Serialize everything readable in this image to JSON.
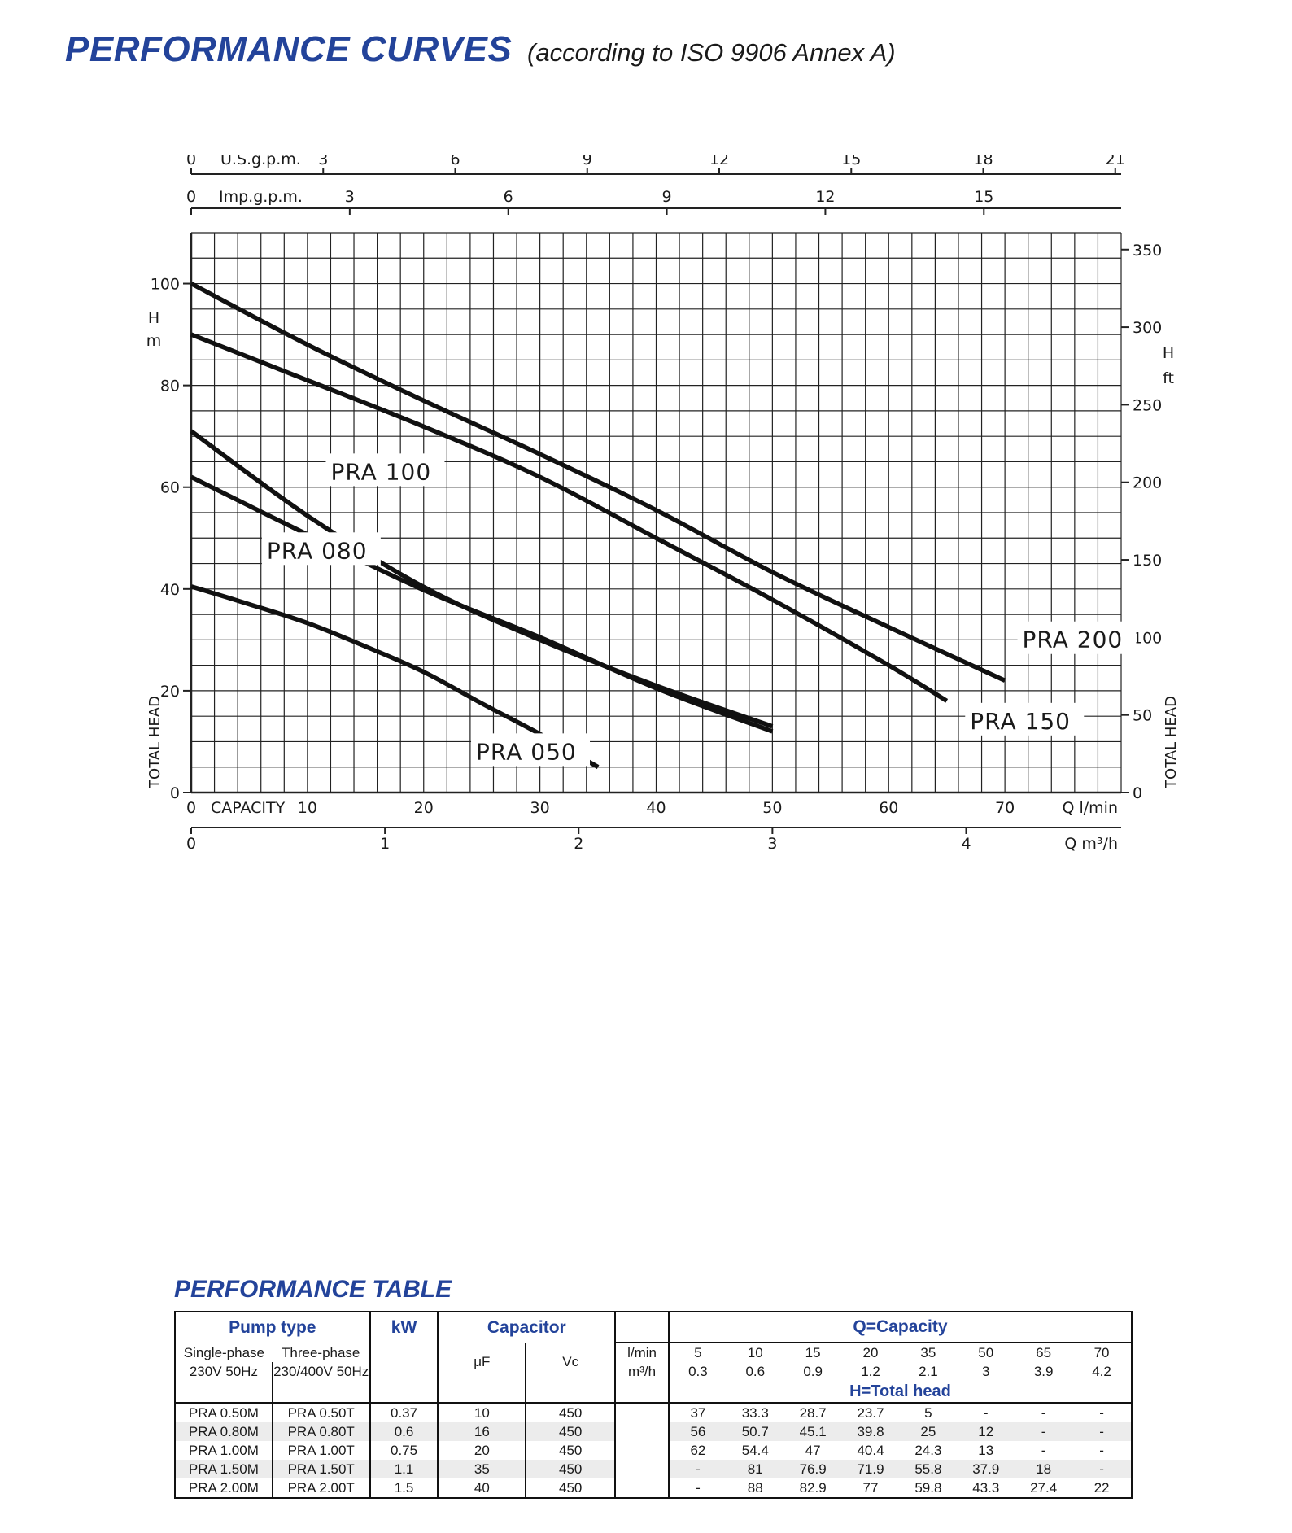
{
  "page": {
    "title": "PERFORMANCE CURVES",
    "subtitle": "(according to ISO 9906 Annex A)",
    "table_title": "PERFORMANCE TABLE"
  },
  "chart_data": {
    "type": "line",
    "x_unit_primary": "Q l/min",
    "x_unit_secondary": "Q m³/h",
    "x_start_label": "CAPACITY",
    "top_unit_us": "U.S.g.p.m.",
    "top_unit_imp": "Imp.g.p.m.",
    "ylabel_left": "TOTAL HEAD",
    "y_unit_left_h": "H",
    "y_unit_left_m": "m",
    "ylabel_right": "TOTAL HEAD",
    "y_unit_right_h": "H",
    "y_unit_right_ft": "ft",
    "xlim": [
      0,
      80
    ],
    "ylim": [
      0,
      110
    ],
    "x_ticks_lmin": [
      "0",
      "10",
      "20",
      "30",
      "40",
      "50",
      "60",
      "70"
    ],
    "x_ticks_m3h": [
      "0",
      "1",
      "2",
      "3",
      "4"
    ],
    "us_gpm_ticks": [
      "0",
      "3",
      "6",
      "9",
      "12",
      "15",
      "18",
      "21"
    ],
    "imp_gpm_ticks": [
      "0",
      "3",
      "6",
      "9",
      "12",
      "15"
    ],
    "y_ticks_m": [
      "0",
      "20",
      "40",
      "60",
      "80",
      "100"
    ],
    "y_ticks_ft": [
      "0",
      "50",
      "100",
      "150",
      "200",
      "250",
      "300",
      "350"
    ],
    "grid": true,
    "series": [
      {
        "name": "PRA 050",
        "x": [
          0,
          5,
          10,
          15,
          20,
          25,
          30,
          35
        ],
        "y": [
          40.5,
          37,
          33.3,
          28.7,
          23.7,
          17.5,
          11.5,
          5
        ]
      },
      {
        "name": "PRA 080",
        "x": [
          0,
          10,
          20,
          30,
          40,
          50
        ],
        "y": [
          62,
          50.7,
          39.8,
          30.5,
          20.5,
          12
        ]
      },
      {
        "name": "PRA 100",
        "x": [
          0,
          10,
          20,
          30,
          40,
          50
        ],
        "y": [
          71,
          54.4,
          40.4,
          30,
          21,
          13
        ]
      },
      {
        "name": "PRA 150",
        "x": [
          0,
          10,
          20,
          30,
          40,
          50,
          60,
          65
        ],
        "y": [
          90,
          81,
          71.9,
          62,
          50,
          37.9,
          25,
          18
        ]
      },
      {
        "name": "PRA 200",
        "x": [
          0,
          10,
          20,
          30,
          40,
          50,
          60,
          70
        ],
        "y": [
          100,
          88,
          77,
          66.5,
          55.5,
          43.3,
          32.5,
          22
        ]
      }
    ],
    "labels": [
      {
        "series": "PRA 100",
        "text": "PRA 100",
        "x": 12,
        "y": 61.5
      },
      {
        "series": "PRA 080",
        "text": "PRA 080",
        "x": 6.5,
        "y": 46
      },
      {
        "series": "PRA 050",
        "text": "PRA 050",
        "x": 24.5,
        "y": 6.5
      },
      {
        "series": "PRA 200",
        "text": "PRA 200",
        "x": 71.5,
        "y": 28.5
      },
      {
        "series": "PRA 150",
        "text": "PRA 150",
        "x": 67,
        "y": 12.5
      }
    ]
  },
  "table": {
    "header": {
      "pump_type": "Pump type",
      "kw": "kW",
      "capacitor": "Capacitor",
      "q_capacity": "Q=Capacity",
      "single_phase": "Single-phase",
      "single_phase_spec": "230V  50Hz",
      "three_phase": "Three-phase",
      "three_phase_spec": "230/400V  50Hz",
      "uf": "μF",
      "vc": "Vc",
      "lmin_label": "l/min",
      "m3h_label": "m³/h",
      "h_total_head": "H=Total head"
    },
    "capacity_lmin": [
      "5",
      "10",
      "15",
      "20",
      "35",
      "50",
      "65",
      "70"
    ],
    "capacity_m3h": [
      "0.3",
      "0.6",
      "0.9",
      "1.2",
      "2.1",
      "3",
      "3.9",
      "4.2"
    ],
    "rows": [
      {
        "single": "PRA 0.50M",
        "three": "PRA 0.50T",
        "kw": "0.37",
        "uf": "10",
        "vc": "450",
        "heads": [
          "37",
          "33.3",
          "28.7",
          "23.7",
          "5",
          "-",
          "-",
          "-"
        ]
      },
      {
        "single": "PRA 0.80M",
        "three": "PRA 0.80T",
        "kw": "0.6",
        "uf": "16",
        "vc": "450",
        "heads": [
          "56",
          "50.7",
          "45.1",
          "39.8",
          "25",
          "12",
          "-",
          "-"
        ]
      },
      {
        "single": "PRA 1.00M",
        "three": "PRA 1.00T",
        "kw": "0.75",
        "uf": "20",
        "vc": "450",
        "heads": [
          "62",
          "54.4",
          "47",
          "40.4",
          "24.3",
          "13",
          "-",
          "-"
        ]
      },
      {
        "single": "PRA 1.50M",
        "three": "PRA 1.50T",
        "kw": "1.1",
        "uf": "35",
        "vc": "450",
        "heads": [
          "-",
          "81",
          "76.9",
          "71.9",
          "55.8",
          "37.9",
          "18",
          "-"
        ]
      },
      {
        "single": "PRA 2.00M",
        "three": "PRA 2.00T",
        "kw": "1.5",
        "uf": "40",
        "vc": "450",
        "heads": [
          "-",
          "88",
          "82.9",
          "77",
          "59.8",
          "43.3",
          "27.4",
          "22"
        ]
      }
    ]
  }
}
